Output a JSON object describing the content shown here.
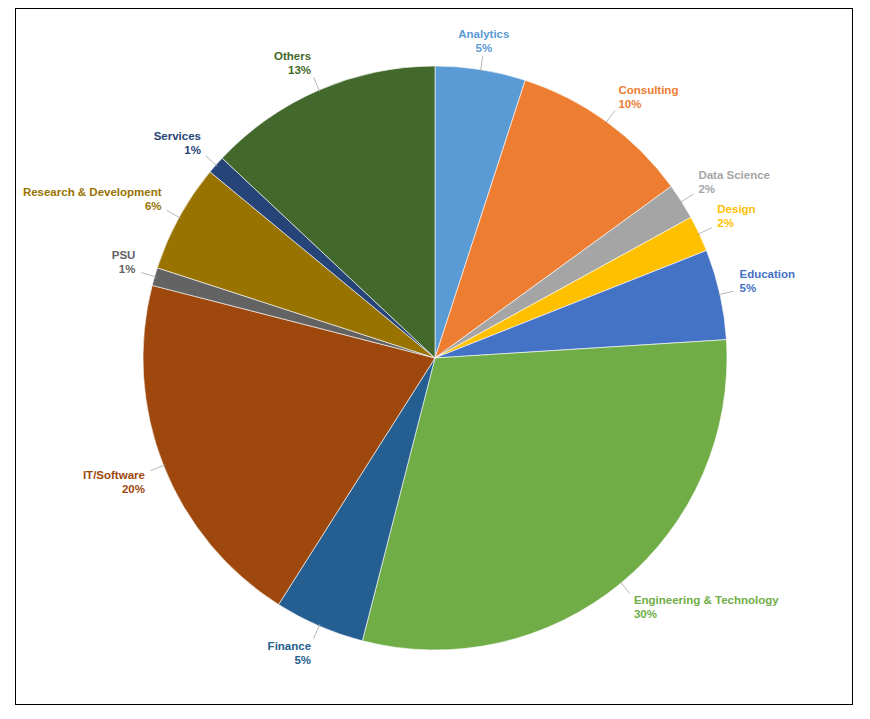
{
  "chart_data": {
    "type": "pie",
    "categories": [
      "Analytics",
      "Consulting",
      "Data Science",
      "Design",
      "Education",
      "Engineering & Technology",
      "Finance",
      "IT/Software",
      "PSU",
      "Research & Development",
      "Services",
      "Others"
    ],
    "values": [
      5,
      10,
      2,
      2,
      5,
      30,
      5,
      20,
      1,
      6,
      1,
      13
    ],
    "value_labels": [
      "5%",
      "10%",
      "2%",
      "2%",
      "5%",
      "30%",
      "5%",
      "20%",
      "1%",
      "6%",
      "1%",
      "13%"
    ],
    "colors": [
      "#5b9bd5",
      "#ed7d31",
      "#a5a5a5",
      "#ffc000",
      "#4472c4",
      "#70ad47",
      "#255e91",
      "#9e480e",
      "#636363",
      "#997300",
      "#264478",
      "#43682b"
    ],
    "data_labels": true
  }
}
